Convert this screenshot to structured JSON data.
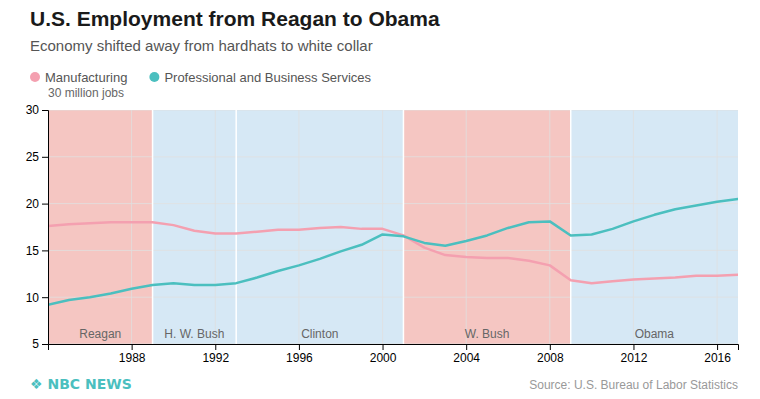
{
  "chart_data": {
    "type": "line",
    "title": "U.S. Employment from Reagan to Obama",
    "subtitle": "Economy shifted away from hardhats to white collar",
    "y_label": "30 million jobs",
    "source": "Source: U.S. Bureau of Labor Statistics",
    "logo": {
      "text": "❖ NBC NEWS",
      "color": "#4bbfbf"
    },
    "x": [
      1984,
      1985,
      1986,
      1987,
      1988,
      1989,
      1990,
      1991,
      1992,
      1993,
      1994,
      1995,
      1996,
      1997,
      1998,
      1999,
      2000,
      2001,
      2002,
      2003,
      2004,
      2005,
      2006,
      2007,
      2008,
      2009,
      2010,
      2011,
      2012,
      2013,
      2014,
      2015,
      2016,
      2017
    ],
    "series": [
      {
        "name": "Manufacturing",
        "color": "#f4a0b0",
        "marker": "circle",
        "values": [
          17.6,
          17.8,
          17.9,
          18.0,
          18.0,
          18.0,
          17.7,
          17.1,
          16.8,
          16.8,
          17.0,
          17.2,
          17.2,
          17.4,
          17.5,
          17.3,
          17.3,
          16.6,
          15.3,
          14.5,
          14.3,
          14.2,
          14.2,
          13.9,
          13.4,
          11.8,
          11.5,
          11.7,
          11.9,
          12.0,
          12.1,
          12.3,
          12.3,
          12.4
        ]
      },
      {
        "name": "Professional and Business Services",
        "color": "#4bbfbf",
        "marker": "circle",
        "values": [
          9.2,
          9.7,
          10.0,
          10.4,
          10.9,
          11.3,
          11.5,
          11.3,
          11.3,
          11.5,
          12.1,
          12.8,
          13.4,
          14.1,
          14.9,
          15.6,
          16.7,
          16.5,
          15.8,
          15.5,
          16.0,
          16.6,
          17.4,
          18.0,
          18.1,
          16.6,
          16.7,
          17.3,
          18.1,
          18.8,
          19.4,
          19.8,
          20.2,
          20.5
        ]
      }
    ],
    "eras": [
      {
        "name": "Reagan",
        "start": 1984,
        "end": 1989,
        "color": "#f5c6c2"
      },
      {
        "name": "H. W. Bush",
        "start": 1989,
        "end": 1993,
        "color": "#d6e8f5"
      },
      {
        "name": "Clinton",
        "start": 1993,
        "end": 2001,
        "color": "#d6e8f5"
      },
      {
        "name": "W. Bush",
        "start": 2001,
        "end": 2009,
        "color": "#f5c6c2"
      },
      {
        "name": "Obama",
        "start": 2009,
        "end": 2017,
        "color": "#d6e8f5"
      }
    ],
    "xlim": [
      1984,
      2017
    ],
    "ylim": [
      5,
      30
    ],
    "xticks": [
      1988,
      1992,
      1996,
      2000,
      2004,
      2008,
      2012,
      2016
    ],
    "yticks": [
      5,
      10,
      15,
      20,
      25,
      30
    ],
    "grid": true,
    "legend": "top"
  }
}
